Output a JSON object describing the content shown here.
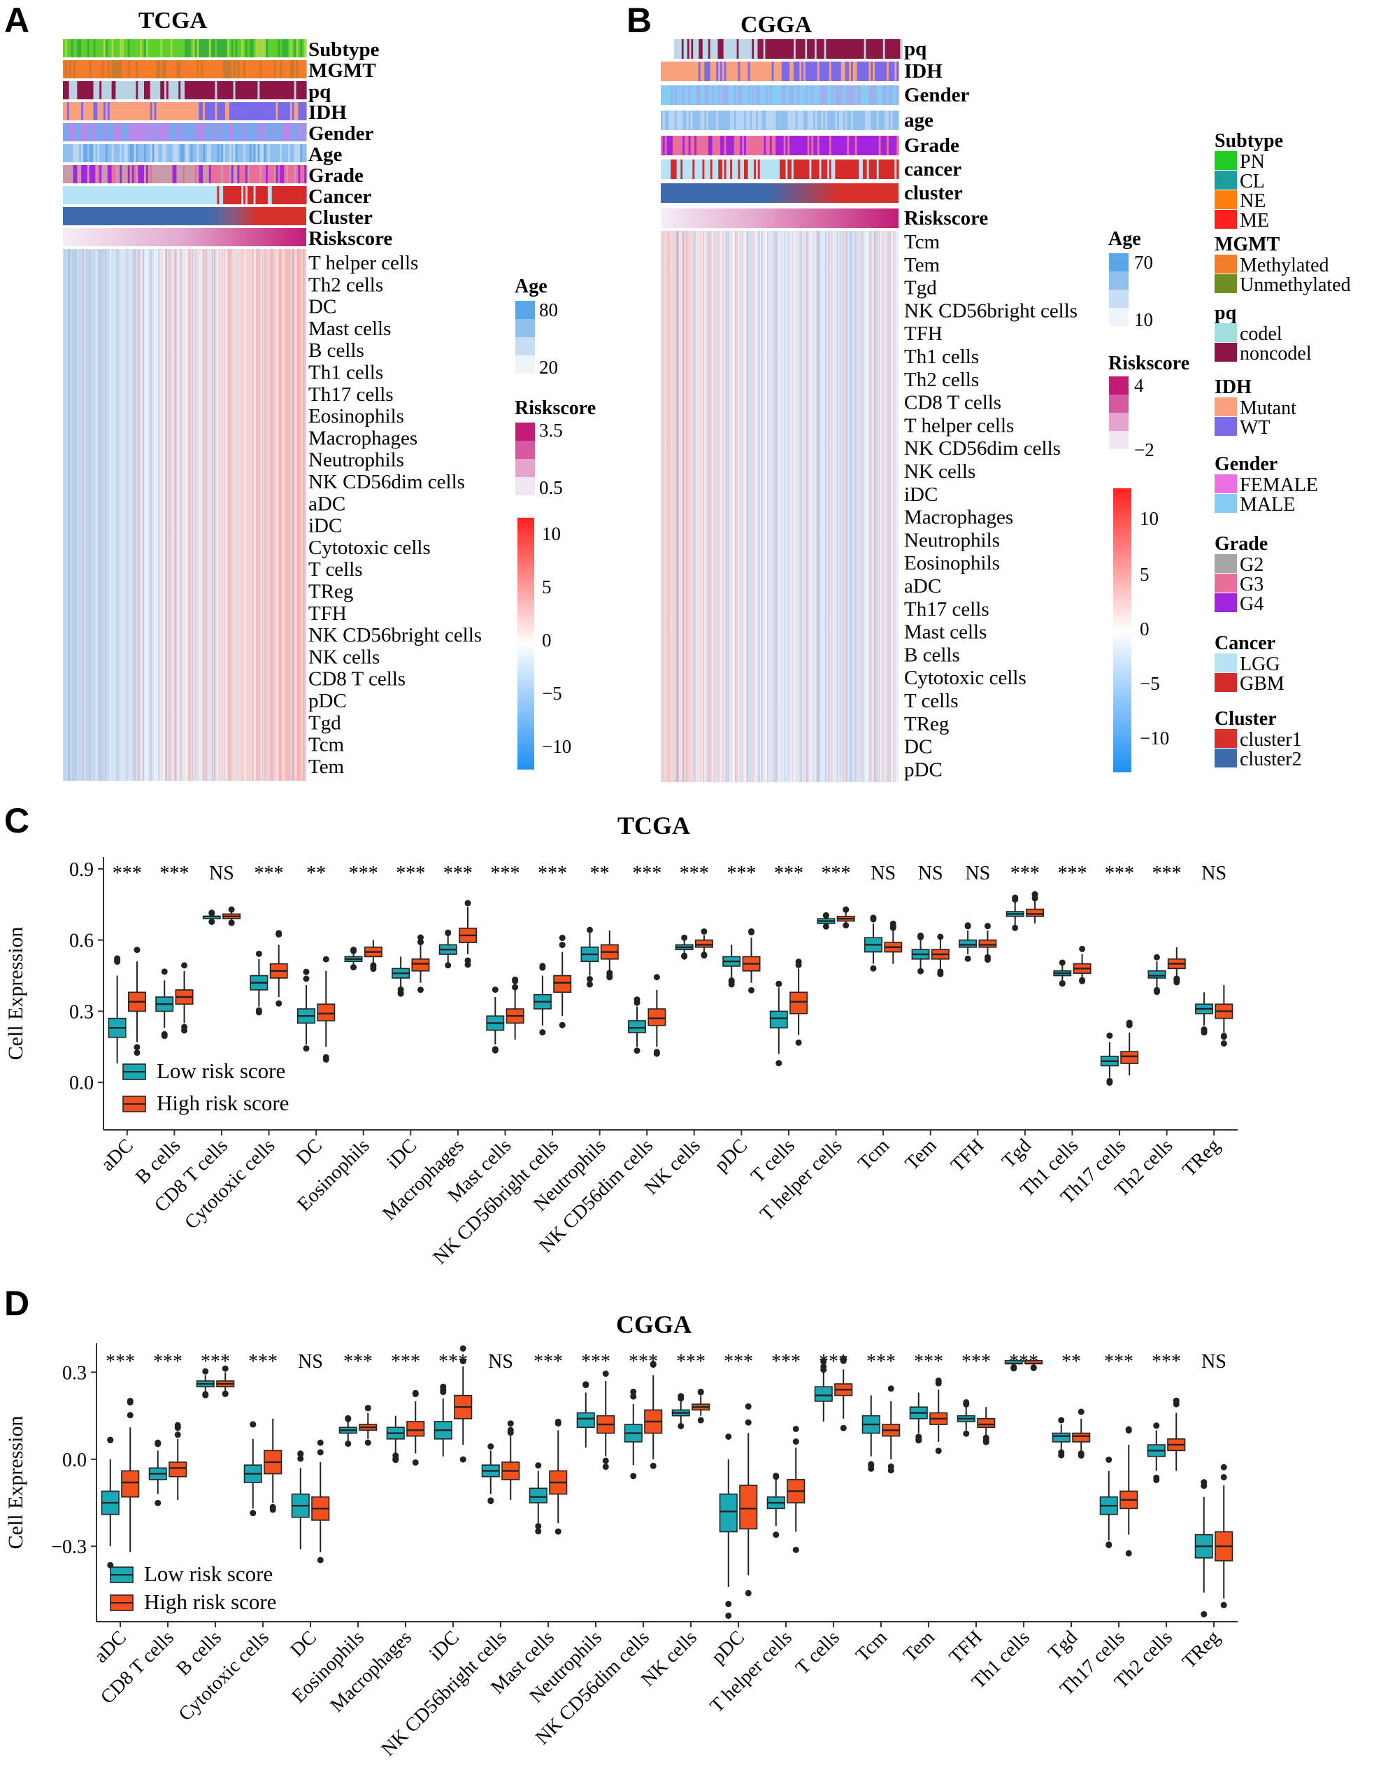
{
  "panels": {
    "A": {
      "letter": "A",
      "title": "TCGA",
      "annotation_tracks": [
        "Subtype",
        "MGMT",
        "pq",
        "IDH",
        "Gender",
        "Age",
        "Grade",
        "Cancer",
        "Cluster",
        "Riskscore"
      ],
      "cell_rows": [
        "T helper cells",
        "Th2 cells",
        "DC",
        "Mast cells",
        "B cells",
        "Th1 cells",
        "Th17 cells",
        "Eosinophils",
        "Macrophages",
        "Neutrophils",
        "NK CD56dim cells",
        "aDC",
        "iDC",
        "Cytotoxic cells",
        "T cells",
        "TReg",
        "TFH",
        "NK CD56bright cells",
        "NK cells",
        "CD8 T cells",
        "pDC",
        "Tgd",
        "Tcm",
        "Tem"
      ],
      "legends": {
        "age": {
          "title": "Age",
          "ticks": [
            "80",
            "20"
          ]
        },
        "riskscore": {
          "title": "Riskscore",
          "ticks": [
            "3.5",
            "0.5"
          ]
        },
        "expression": {
          "ticks": [
            "10",
            "5",
            "0",
            "−5",
            "−10"
          ]
        }
      }
    },
    "B": {
      "letter": "B",
      "title": "CGGA",
      "annotation_tracks": [
        "pq",
        "IDH",
        "Gender",
        "age",
        "Grade",
        "cancer",
        "cluster",
        "Riskscore"
      ],
      "cell_rows": [
        "Tcm",
        "Tem",
        "Tgd",
        "NK CD56bright cells",
        "TFH",
        "Th1 cells",
        "Th2 cells",
        "CD8 T cells",
        "T helper cells",
        "NK CD56dim cells",
        "NK cells",
        "iDC",
        "Macrophages",
        "Neutrophils",
        "Eosinophils",
        "aDC",
        "Th17 cells",
        "Mast cells",
        "B cells",
        "Cytotoxic cells",
        "T cells",
        "TReg",
        "DC",
        "pDC"
      ],
      "legends": {
        "age": {
          "title": "Age",
          "ticks": [
            "70",
            "10"
          ]
        },
        "riskscore": {
          "title": "Riskscore",
          "ticks": [
            "4",
            "−2"
          ]
        },
        "expression": {
          "ticks": [
            "10",
            "5",
            "0",
            "−5",
            "−10"
          ]
        }
      }
    }
  },
  "annotation_legend": [
    {
      "title": "Subtype",
      "items": [
        {
          "label": "PN",
          "color": "#22cc22"
        },
        {
          "label": "CL",
          "color": "#1a9e9e"
        },
        {
          "label": "NE",
          "color": "#ff7f0e"
        },
        {
          "label": "ME",
          "color": "#ff2020"
        }
      ]
    },
    {
      "title": "MGMT",
      "items": [
        {
          "label": "Methylated",
          "color": "#f47c2a"
        },
        {
          "label": "Unmethylated",
          "color": "#6e8e22"
        }
      ]
    },
    {
      "title": "pq",
      "items": [
        {
          "label": "codel",
          "color": "#9fe0df"
        },
        {
          "label": "noncodel",
          "color": "#8c1646"
        }
      ]
    },
    {
      "title": "IDH",
      "items": [
        {
          "label": "Mutant",
          "color": "#f9a07c"
        },
        {
          "label": "WT",
          "color": "#7b6be8"
        }
      ]
    },
    {
      "title": "Gender",
      "items": [
        {
          "label": "FEMALE",
          "color": "#ee6ee6"
        },
        {
          "label": "MALE",
          "color": "#86ccf2"
        }
      ]
    },
    {
      "title": "Grade",
      "items": [
        {
          "label": "G2",
          "color": "#a6a6a6"
        },
        {
          "label": "G3",
          "color": "#e96f9a"
        },
        {
          "label": "G4",
          "color": "#a425e0"
        }
      ]
    },
    {
      "title": "Cancer",
      "items": [
        {
          "label": "LGG",
          "color": "#b7e3f7"
        },
        {
          "label": "GBM",
          "color": "#d62a2a"
        }
      ]
    },
    {
      "title": "Cluster",
      "items": [
        {
          "label": "cluster1",
          "color": "#d8312c"
        },
        {
          "label": "cluster2",
          "color": "#3d6bad"
        }
      ]
    }
  ],
  "colors": {
    "low_risk": "#1aa9b4",
    "high_risk": "#f2501c",
    "heat_high": "#ff2222",
    "heat_low": "#1e8ff5",
    "riskscore": "#c21c76",
    "age": "#5aa6e8"
  },
  "chart_data": [
    {
      "panel": "C",
      "type": "box",
      "title": "TCGA",
      "ylabel": "Cell Expression",
      "yticks": [
        "0.0",
        "0.3",
        "0.6",
        "0.9"
      ],
      "ylim": [
        -0.2,
        0.95
      ],
      "legend": {
        "position": "bottom-left",
        "entries": [
          "Low risk score",
          "High risk score"
        ]
      },
      "categories": [
        "aDC",
        "B cells",
        "CD8 T cells",
        "Cytotoxic cells",
        "DC",
        "Eosinophils",
        "iDC",
        "Macrophages",
        "Mast cells",
        "NK CD56bright cells",
        "Neutrophils",
        "NK CD56dim cells",
        "NK cells",
        "pDC",
        "T cells",
        "T helper cells",
        "Tcm",
        "Tem",
        "TFH",
        "Tgd",
        "Th1 cells",
        "Th17 cells",
        "Th2 cells",
        "TReg"
      ],
      "significance": [
        "***",
        "***",
        "NS",
        "***",
        "**",
        "***",
        "***",
        "***",
        "***",
        "***",
        "**",
        "***",
        "***",
        "***",
        "***",
        "***",
        "NS",
        "NS",
        "NS",
        "***",
        "***",
        "***",
        "***",
        "NS"
      ],
      "series": [
        {
          "name": "Low risk score",
          "median": [
            0.23,
            0.33,
            0.7,
            0.42,
            0.28,
            0.52,
            0.46,
            0.56,
            0.25,
            0.34,
            0.54,
            0.23,
            0.57,
            0.51,
            0.27,
            0.68,
            0.58,
            0.54,
            0.58,
            0.71,
            0.46,
            0.09,
            0.45,
            0.31
          ],
          "q1": [
            0.19,
            0.3,
            0.69,
            0.39,
            0.25,
            0.51,
            0.44,
            0.54,
            0.22,
            0.31,
            0.51,
            0.21,
            0.56,
            0.49,
            0.23,
            0.67,
            0.55,
            0.52,
            0.57,
            0.7,
            0.45,
            0.07,
            0.44,
            0.29
          ],
          "q3": [
            0.27,
            0.36,
            0.7,
            0.45,
            0.31,
            0.53,
            0.48,
            0.58,
            0.28,
            0.37,
            0.57,
            0.26,
            0.58,
            0.53,
            0.3,
            0.69,
            0.61,
            0.56,
            0.6,
            0.72,
            0.47,
            0.11,
            0.47,
            0.33
          ],
          "whisker_low": [
            0.08,
            0.23,
            0.68,
            0.32,
            0.16,
            0.49,
            0.4,
            0.5,
            0.16,
            0.24,
            0.45,
            0.15,
            0.54,
            0.44,
            0.12,
            0.66,
            0.5,
            0.48,
            0.54,
            0.66,
            0.43,
            0.02,
            0.4,
            0.24
          ],
          "whisker_high": [
            0.45,
            0.43,
            0.71,
            0.52,
            0.41,
            0.55,
            0.53,
            0.62,
            0.36,
            0.45,
            0.63,
            0.32,
            0.6,
            0.58,
            0.4,
            0.7,
            0.67,
            0.6,
            0.64,
            0.76,
            0.5,
            0.17,
            0.51,
            0.38
          ]
        },
        {
          "name": "High risk score",
          "median": [
            0.34,
            0.36,
            0.7,
            0.47,
            0.29,
            0.55,
            0.5,
            0.62,
            0.28,
            0.42,
            0.55,
            0.27,
            0.58,
            0.5,
            0.34,
            0.69,
            0.57,
            0.54,
            0.58,
            0.71,
            0.48,
            0.11,
            0.5,
            0.3
          ],
          "q1": [
            0.3,
            0.33,
            0.69,
            0.44,
            0.26,
            0.53,
            0.47,
            0.59,
            0.25,
            0.38,
            0.52,
            0.24,
            0.57,
            0.47,
            0.29,
            0.68,
            0.55,
            0.52,
            0.57,
            0.7,
            0.46,
            0.08,
            0.48,
            0.27
          ],
          "q3": [
            0.38,
            0.39,
            0.71,
            0.5,
            0.33,
            0.57,
            0.52,
            0.65,
            0.31,
            0.45,
            0.58,
            0.31,
            0.6,
            0.53,
            0.38,
            0.7,
            0.59,
            0.56,
            0.6,
            0.73,
            0.5,
            0.13,
            0.52,
            0.33
          ],
          "whisker_low": [
            0.17,
            0.25,
            0.68,
            0.36,
            0.15,
            0.5,
            0.42,
            0.54,
            0.18,
            0.28,
            0.47,
            0.15,
            0.55,
            0.42,
            0.2,
            0.67,
            0.5,
            0.48,
            0.54,
            0.67,
            0.44,
            0.03,
            0.45,
            0.21
          ],
          "whisker_high": [
            0.51,
            0.47,
            0.72,
            0.58,
            0.47,
            0.6,
            0.58,
            0.74,
            0.39,
            0.55,
            0.64,
            0.39,
            0.62,
            0.61,
            0.48,
            0.72,
            0.64,
            0.6,
            0.64,
            0.77,
            0.54,
            0.21,
            0.57,
            0.41
          ]
        }
      ]
    },
    {
      "panel": "D",
      "type": "box",
      "title": "CGGA",
      "ylabel": "Cell Expression",
      "yticks": [
        "−0.3",
        "0.0",
        "0.3"
      ],
      "ylim": [
        -0.56,
        0.4
      ],
      "legend": {
        "position": "bottom-left",
        "entries": [
          "Low risk score",
          "High risk score"
        ]
      },
      "categories": [
        "aDC",
        "CD8 T cells",
        "B cells",
        "Cytotoxic cells",
        "DC",
        "Eosinophils",
        "Macrophages",
        "iDC",
        "NK CD56bright cells",
        "Mast cells",
        "Neutrophils",
        "NK CD56dim cells",
        "NK cells",
        "pDC",
        "T helper cells",
        "T cells",
        "Tcm",
        "Tem",
        "TFH",
        "Th1 cells",
        "Tgd",
        "Th17 cells",
        "Th2 cells",
        "TReg"
      ],
      "significance": [
        "***",
        "***",
        "***",
        "***",
        "NS",
        "***",
        "***",
        "***",
        "NS",
        "***",
        "***",
        "***",
        "***",
        "***",
        "***",
        "***",
        "***",
        "***",
        "***",
        "***",
        "**",
        "***",
        "***",
        "NS"
      ],
      "series": [
        {
          "name": "Low risk score",
          "median": [
            -0.15,
            -0.05,
            0.26,
            -0.05,
            -0.16,
            0.1,
            0.09,
            0.1,
            -0.04,
            -0.13,
            0.14,
            0.09,
            0.16,
            -0.18,
            -0.15,
            0.22,
            0.12,
            0.16,
            0.14,
            0.33,
            0.08,
            -0.16,
            0.03,
            -0.3
          ],
          "q1": [
            -0.19,
            -0.07,
            0.25,
            -0.08,
            -0.2,
            0.09,
            0.07,
            0.07,
            -0.06,
            -0.15,
            0.11,
            0.06,
            0.15,
            -0.25,
            -0.17,
            0.2,
            0.09,
            0.14,
            0.13,
            0.33,
            0.06,
            -0.19,
            0.01,
            -0.34
          ],
          "q3": [
            -0.11,
            -0.03,
            0.27,
            -0.02,
            -0.12,
            0.11,
            0.11,
            0.13,
            -0.02,
            -0.1,
            0.16,
            0.12,
            0.17,
            -0.12,
            -0.13,
            0.25,
            0.15,
            0.18,
            0.15,
            0.34,
            0.09,
            -0.13,
            0.05,
            -0.26
          ],
          "whisker_low": [
            -0.3,
            -0.12,
            0.23,
            -0.17,
            -0.31,
            0.06,
            0.02,
            0.01,
            -0.12,
            -0.22,
            0.04,
            -0.02,
            0.12,
            -0.44,
            -0.23,
            0.13,
            0.01,
            0.09,
            0.1,
            0.32,
            0.03,
            -0.28,
            -0.04,
            -0.46
          ],
          "whisker_high": [
            0.0,
            0.03,
            0.29,
            0.07,
            -0.03,
            0.13,
            0.15,
            0.21,
            0.03,
            -0.04,
            0.23,
            0.19,
            0.2,
            0.0,
            -0.07,
            0.3,
            0.22,
            0.23,
            0.18,
            0.35,
            0.12,
            -0.04,
            0.1,
            -0.13
          ]
        },
        {
          "name": "High risk score",
          "median": [
            -0.08,
            -0.03,
            0.26,
            -0.01,
            -0.17,
            0.11,
            0.1,
            0.18,
            -0.04,
            -0.08,
            0.12,
            0.13,
            0.18,
            -0.17,
            -0.11,
            0.24,
            0.1,
            0.14,
            0.12,
            0.33,
            0.08,
            -0.14,
            0.05,
            -0.3
          ],
          "q1": [
            -0.13,
            -0.06,
            0.25,
            -0.05,
            -0.21,
            0.1,
            0.08,
            0.14,
            -0.07,
            -0.12,
            0.09,
            0.09,
            0.17,
            -0.24,
            -0.15,
            0.22,
            0.08,
            0.12,
            0.11,
            0.33,
            0.06,
            -0.17,
            0.03,
            -0.35
          ],
          "q3": [
            -0.04,
            -0.01,
            0.27,
            0.03,
            -0.13,
            0.12,
            0.13,
            0.22,
            -0.01,
            -0.04,
            0.15,
            0.17,
            0.19,
            -0.09,
            -0.07,
            0.26,
            0.12,
            0.16,
            0.14,
            0.34,
            0.09,
            -0.11,
            0.07,
            -0.25
          ],
          "whisker_low": [
            -0.32,
            -0.14,
            0.23,
            -0.15,
            -0.32,
            0.07,
            0.02,
            0.05,
            -0.14,
            -0.22,
            0.01,
            0.0,
            0.15,
            -0.4,
            -0.25,
            0.14,
            0.0,
            0.06,
            0.08,
            0.32,
            0.03,
            -0.26,
            -0.04,
            -0.48
          ],
          "whisker_high": [
            0.11,
            0.07,
            0.3,
            0.14,
            -0.01,
            0.16,
            0.2,
            0.32,
            0.08,
            0.1,
            0.27,
            0.29,
            0.22,
            0.09,
            0.04,
            0.31,
            0.2,
            0.24,
            0.18,
            0.35,
            0.14,
            0.05,
            0.16,
            -0.09
          ]
        }
      ]
    }
  ]
}
